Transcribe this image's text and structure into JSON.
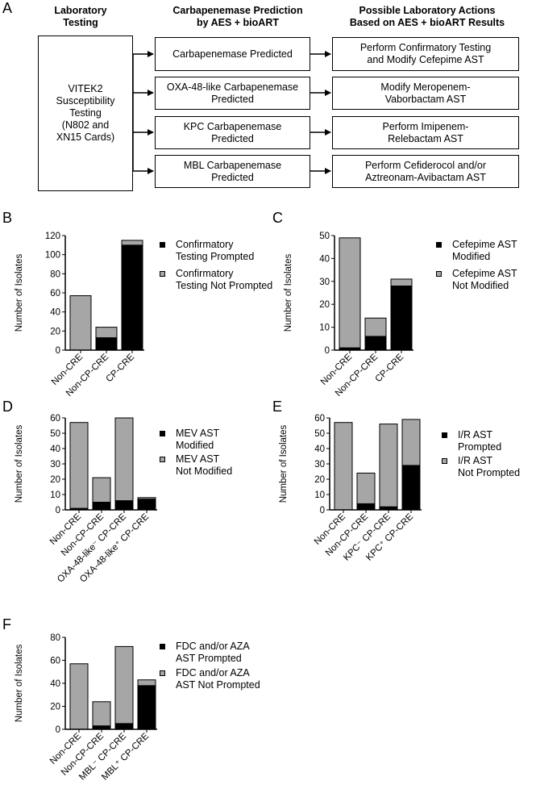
{
  "panel_a": {
    "letter": "A",
    "headers": {
      "left": "Laboratory\nTesting",
      "middle": "Carbapenemase Prediction\nby AES + bioART",
      "right": "Possible Laboratory Actions\nBased on AES + bioART Results"
    },
    "source_box": "VITEK2\nSusceptibility\nTesting\n(N802 and\nXN15 Cards)",
    "predictions": [
      "Carbapenemase Predicted",
      "OXA-48-like Carbapenemase\nPredicted",
      "KPC Carbapenemase\nPredicted",
      "MBL Carbapenemase\nPredicted"
    ],
    "actions": [
      "Perform Confirmatory Testing\nand Modify Cefepime AST",
      "Modify Meropenem-\nVaborbactam AST",
      "Perform Imipenem-\nRelebactam AST",
      "Perform Cefiderocol and/or\nAztreonam-Avibactam AST"
    ]
  },
  "colors": {
    "black": "#000000",
    "gray": "#a6a6a6"
  },
  "chart_data": [
    {
      "letter": "B",
      "type": "bar",
      "stacked": true,
      "ylabel": "Number of Isolates",
      "ylim": [
        0,
        120
      ],
      "yticks": [
        "0",
        "20",
        "40",
        "60",
        "80",
        "100",
        "120"
      ],
      "categories": [
        "Non-CRE",
        "Non-CP-CRE",
        "CP-CRE"
      ],
      "series": [
        {
          "name": "Confirmatory\nTesting Prompted",
          "color": "black",
          "values": [
            0,
            13,
            110
          ]
        },
        {
          "name": "Confirmatory\nTesting Not Prompted",
          "color": "gray",
          "values": [
            57,
            11,
            5
          ]
        }
      ]
    },
    {
      "letter": "C",
      "type": "bar",
      "stacked": true,
      "ylabel": "Number of Isolates",
      "ylim": [
        0,
        50
      ],
      "yticks": [
        "0",
        "10",
        "20",
        "30",
        "40",
        "50"
      ],
      "categories": [
        "Non-CRE",
        "Non-CP-CRE",
        "CP-CRE"
      ],
      "series": [
        {
          "name": "Cefepime AST\nModified",
          "color": "black",
          "values": [
            1,
            6,
            28
          ]
        },
        {
          "name": "Cefepime AST\nNot Modified",
          "color": "gray",
          "values": [
            48,
            8,
            3
          ]
        }
      ]
    },
    {
      "letter": "D",
      "type": "bar",
      "stacked": true,
      "ylabel": "Number of Isolates",
      "ylim": [
        0,
        60
      ],
      "yticks": [
        "0",
        "10",
        "20",
        "30",
        "40",
        "50",
        "60"
      ],
      "categories": [
        "Non-CRE",
        "Non-CP-CRE",
        "OXA-48-like⁻ CP-CRE",
        "OXA-48-like⁺ CP-CRE"
      ],
      "series": [
        {
          "name": "MEV AST\nModified",
          "color": "black",
          "values": [
            1,
            5,
            6,
            7
          ]
        },
        {
          "name": "MEV AST\nNot Modified",
          "color": "gray",
          "values": [
            56,
            16,
            54,
            1
          ]
        }
      ]
    },
    {
      "letter": "E",
      "type": "bar",
      "stacked": true,
      "ylabel": "Number of Isolates",
      "ylim": [
        0,
        60
      ],
      "yticks": [
        "0",
        "10",
        "20",
        "30",
        "40",
        "50",
        "60"
      ],
      "categories": [
        "Non-CRE",
        "Non-CP-CRE",
        "KPC⁻ CP-CRE",
        "KPC⁺ CP-CRE"
      ],
      "series": [
        {
          "name": "I/R AST\nPrompted",
          "color": "black",
          "values": [
            0,
            4,
            2,
            29
          ]
        },
        {
          "name": "I/R AST\nNot Prompted",
          "color": "gray",
          "values": [
            57,
            20,
            54,
            30
          ]
        }
      ]
    },
    {
      "letter": "F",
      "type": "bar",
      "stacked": true,
      "ylabel": "Number of Isolates",
      "ylim": [
        0,
        80
      ],
      "yticks": [
        "0",
        "20",
        "40",
        "60",
        "80"
      ],
      "categories": [
        "Non-CRE",
        "Non-CP-CRE",
        "MBL⁻ CP-CRE",
        "MBL⁺ CP-CRE"
      ],
      "series": [
        {
          "name": "FDC and/or AZA\nAST Prompted",
          "color": "black",
          "values": [
            0,
            3,
            5,
            38
          ]
        },
        {
          "name": "FDC and/or AZA\nAST Not Prompted",
          "color": "gray",
          "values": [
            57,
            21,
            67,
            5
          ]
        }
      ]
    }
  ]
}
